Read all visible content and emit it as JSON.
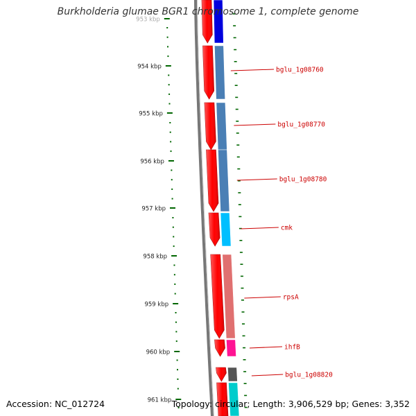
{
  "title": "Burkholderia glumae BGR1 chromosome 1, complete genome",
  "accession": "Accession: NC_012724",
  "summary": "Topology: circular; Length: 3,906,529 bp; Genes: 3,352",
  "colors": {
    "backbone": "#777777",
    "gene_forward": "#ff0000",
    "tick": "#006600",
    "label_text": "#cc0000"
  },
  "ticks": [
    "953 kbp",
    "954 kbp",
    "955 kbp",
    "956 kbp",
    "957 kbp",
    "958 kbp",
    "959 kbp",
    "960 kbp",
    "961 kbp"
  ],
  "genes": [
    {
      "label": "",
      "color": "#0000dd"
    },
    {
      "label": "bglu_1g08760",
      "color": "#4a7fb5"
    },
    {
      "label": "bglu_1g08770",
      "color": "#4a7fb5"
    },
    {
      "label": "bglu_1g08780",
      "color": "#4a7fb5"
    },
    {
      "label": "cmk",
      "color": "#00bfff"
    },
    {
      "label": "rpsA",
      "color": "#e07070"
    },
    {
      "label": "ihfB",
      "color": "#ff1493"
    },
    {
      "label": "bglu_1g08820",
      "color": "#555555"
    },
    {
      "label": "",
      "color": "#00cccc"
    }
  ]
}
